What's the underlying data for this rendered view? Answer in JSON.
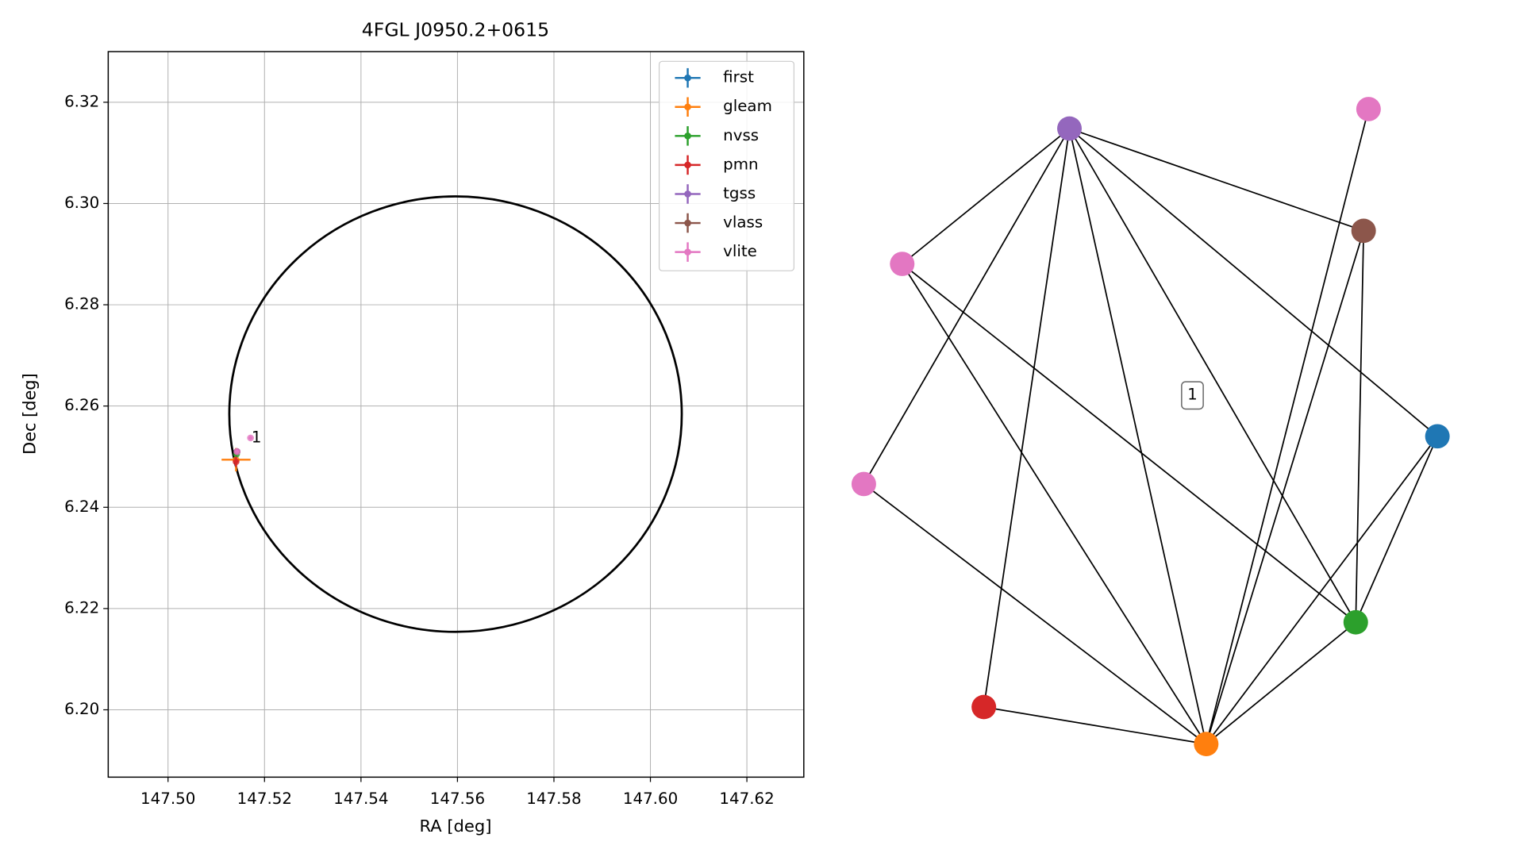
{
  "chart_data": [
    {
      "type": "scatter",
      "title": "4FGL J0950.2+0615",
      "xlabel": "RA [deg]",
      "ylabel": "Dec [deg]",
      "xlim": [
        147.4876,
        147.6318
      ],
      "ylim": [
        6.1867,
        6.33
      ],
      "xticks": [
        {
          "value": 147.5,
          "label": "147.50"
        },
        147.52,
        147.54,
        147.56,
        147.58,
        {
          "value": 147.6,
          "label": "147.60"
        },
        147.62
      ],
      "yticks": [
        {
          "value": 6.2,
          "label": "6.20"
        },
        6.22,
        6.24,
        6.26,
        6.28,
        {
          "value": 6.3,
          "label": "6.30"
        },
        6.32
      ],
      "grid": true,
      "legend": "upper right",
      "series": [
        {
          "name": "first",
          "color": "#1f77b4",
          "x": [
            147.5143
          ],
          "y": [
            6.251
          ],
          "xerr": [
            0.0004
          ],
          "yerr": [
            0.0004
          ]
        },
        {
          "name": "gleam",
          "color": "#ff7f0e",
          "x": [
            147.5141
          ],
          "y": [
            6.2494
          ],
          "xerr": [
            0.003
          ],
          "yerr": [
            0.0023
          ]
        },
        {
          "name": "nvss",
          "color": "#2ca02c",
          "x": [
            147.5142
          ],
          "y": [
            6.2505
          ],
          "xerr": [
            0.0005
          ],
          "yerr": [
            0.0006
          ]
        },
        {
          "name": "pmn",
          "color": "#d62728",
          "x": [
            147.5141
          ],
          "y": [
            6.249
          ],
          "xerr": [
            0.0005
          ],
          "yerr": [
            0.001
          ]
        },
        {
          "name": "tgss",
          "color": "#9467bd",
          "x": [
            147.5143
          ],
          "y": [
            6.251
          ],
          "xerr": [
            0.0005
          ],
          "yerr": [
            0.0005
          ]
        },
        {
          "name": "vlass",
          "color": "#8c564b",
          "x": [
            147.5143
          ],
          "y": [
            6.251
          ],
          "xerr": [
            0.0002
          ],
          "yerr": [
            0.0002
          ]
        },
        {
          "name": "vlite",
          "color": "#e377c2",
          "x": [
            147.5143,
            147.5171
          ],
          "y": [
            6.251,
            6.2537
          ],
          "xerr": [
            0.0004,
            0.0004
          ],
          "yerr": [
            0.0004,
            0.0004
          ]
        }
      ],
      "ellipse": {
        "center": [
          147.5596,
          6.2584
        ],
        "width": 0.0938,
        "height": 0.086,
        "color": "#000000"
      },
      "annotation": {
        "text": "1",
        "x": 147.5173,
        "y": 6.2537
      }
    },
    {
      "type": "network",
      "label": "1",
      "nodes": [
        "#9467bd",
        "#e377c2",
        "#8c564b",
        "#e377c2",
        "#1f77b4",
        "#e377c2",
        "#2ca02c",
        "#d62728",
        "#ff7f0e"
      ],
      "edges": [
        [
          0,
          3
        ],
        [
          0,
          2
        ],
        [
          0,
          4
        ],
        [
          0,
          5
        ],
        [
          0,
          7
        ],
        [
          0,
          8
        ],
        [
          0,
          6
        ],
        [
          1,
          8
        ],
        [
          2,
          8
        ],
        [
          2,
          6
        ],
        [
          3,
          8
        ],
        [
          3,
          6
        ],
        [
          4,
          6
        ],
        [
          4,
          8
        ],
        [
          5,
          8
        ],
        [
          7,
          8
        ],
        [
          6,
          8
        ]
      ]
    }
  ]
}
